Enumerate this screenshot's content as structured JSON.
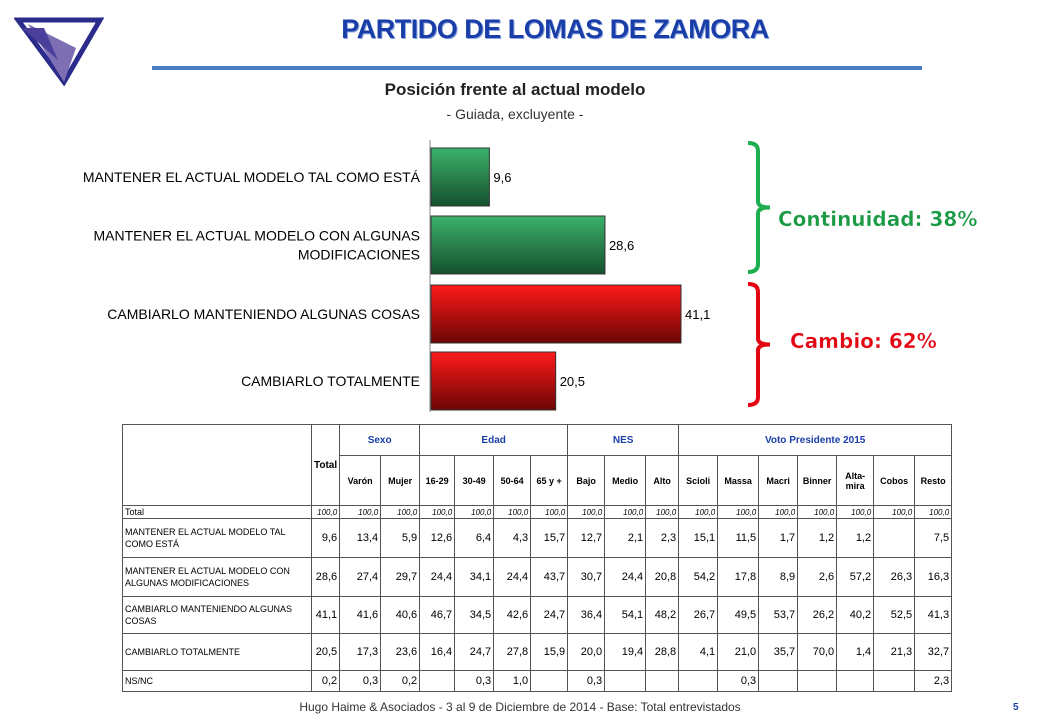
{
  "header": {
    "title": "PARTIDO DE LOMAS DE ZAMORA",
    "chart_title": "Posición frente al actual modelo",
    "chart_subtitle": "- Guiada, excluyente -"
  },
  "logo": "inverted-triangle-logo",
  "chart_data": {
    "type": "bar",
    "orientation": "horizontal",
    "categories": [
      [
        "MANTENER EL ACTUAL MODELO TAL COMO ESTÁ"
      ],
      [
        "MANTENER EL ACTUAL MODELO CON ALGUNAS",
        "MODIFICACIONES"
      ],
      [
        "CAMBIARLO MANTENIENDO ALGUNAS COSAS"
      ],
      [
        "CAMBIARLO TOTALMENTE"
      ]
    ],
    "values": [
      9.6,
      28.6,
      41.1,
      20.5
    ],
    "value_labels": [
      "9,6",
      "28,6",
      "41,1",
      "20,5"
    ],
    "bar_colors": [
      "#1e8a4a",
      "#1e8a4a",
      "#e30613",
      "#e30613"
    ],
    "xlim": [
      0,
      60
    ],
    "grid": false,
    "groups": [
      {
        "label": "Continuidad:  38%",
        "color": "#1a9a45",
        "bracket_color": "#1fae4f"
      },
      {
        "label": "Cambio: 62%",
        "color": "#e30613",
        "bracket_color": "#e30613"
      }
    ]
  },
  "table": {
    "corner_total": "Total",
    "groups": [
      {
        "label": "Sexo",
        "cols": [
          "Varón",
          "Mujer"
        ]
      },
      {
        "label": "Edad",
        "cols": [
          "16-29",
          "30-49",
          "50-64",
          "65 y +"
        ]
      },
      {
        "label": "NES",
        "cols": [
          "Bajo",
          "Medio",
          "Alto"
        ]
      },
      {
        "label": "Voto Presidente 2015",
        "cols": [
          "Scioli",
          "Massa",
          "Macri",
          "Binner",
          "Alta-mira",
          "Cobos",
          "Resto"
        ]
      }
    ],
    "rows": [
      {
        "label": "Total",
        "small": true,
        "values": [
          "100,0",
          "100,0",
          "100,0",
          "100,0",
          "100,0",
          "100,0",
          "100,0",
          "100,0",
          "100,0",
          "100,0",
          "100,0",
          "100,0",
          "100,0",
          "100,0",
          "100,0",
          "100,0",
          "100,0"
        ]
      },
      {
        "label": "MANTENER EL ACTUAL MODELO TAL COMO ESTÁ",
        "small": false,
        "values": [
          "9,6",
          "13,4",
          "5,9",
          "12,6",
          "6,4",
          "4,3",
          "15,7",
          "12,7",
          "2,1",
          "2,3",
          "15,1",
          "11,5",
          "1,7",
          "1,2",
          "1,2",
          "",
          "7,5"
        ]
      },
      {
        "label": "MANTENER EL ACTUAL MODELO CON ALGUNAS MODIFICACIONES",
        "small": false,
        "values": [
          "28,6",
          "27,4",
          "29,7",
          "24,4",
          "34,1",
          "24,4",
          "43,7",
          "30,7",
          "24,4",
          "20,8",
          "54,2",
          "17,8",
          "8,9",
          "2,6",
          "57,2",
          "26,3",
          "16,3"
        ]
      },
      {
        "label": "CAMBIARLO MANTENIENDO ALGUNAS COSAS",
        "small": false,
        "values": [
          "41,1",
          "41,6",
          "40,6",
          "46,7",
          "34,5",
          "42,6",
          "24,7",
          "36,4",
          "54,1",
          "48,2",
          "26,7",
          "49,5",
          "53,7",
          "26,2",
          "40,2",
          "52,5",
          "41,3"
        ]
      },
      {
        "label": "CAMBIARLO TOTALMENTE",
        "small": false,
        "values": [
          "20,5",
          "17,3",
          "23,6",
          "16,4",
          "24,7",
          "27,8",
          "15,9",
          "20,0",
          "19,4",
          "28,8",
          "4,1",
          "21,0",
          "35,7",
          "70,0",
          "1,4",
          "21,3",
          "32,7"
        ]
      },
      {
        "label": "NS/NC",
        "small": false,
        "values": [
          "0,2",
          "0,3",
          "0,2",
          "",
          "0,3",
          "1,0",
          "",
          "0,3",
          "",
          "",
          "",
          "0,3",
          "",
          "",
          "",
          "",
          "2,3"
        ]
      }
    ]
  },
  "footer": {
    "text": "Hugo Haime & Asociados    -    3 al  9 de  Diciembre de  2014    -       Base: Total entrevistados",
    "page": "5"
  }
}
